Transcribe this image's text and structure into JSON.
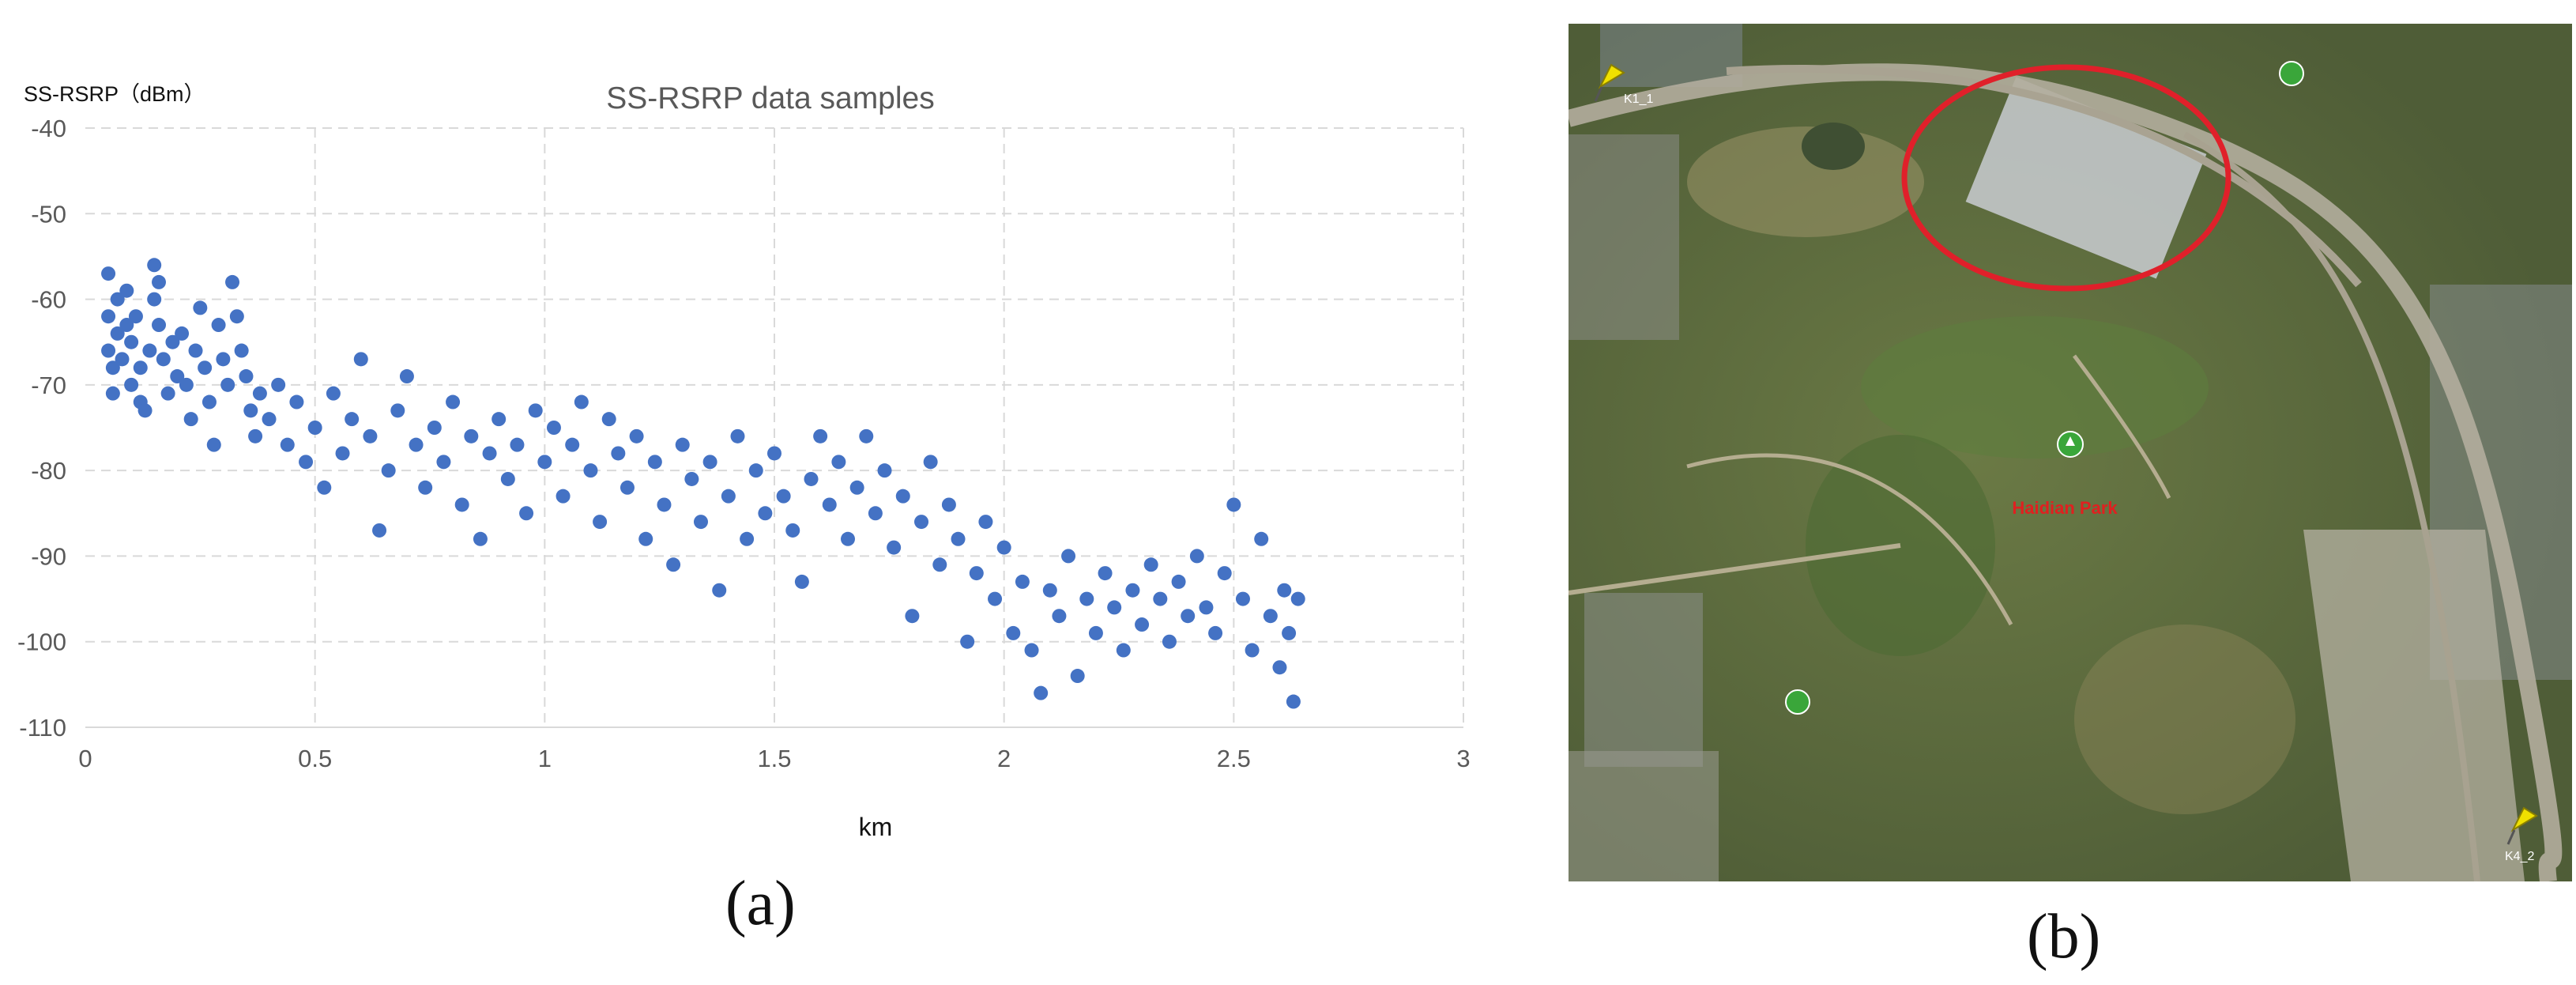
{
  "panels": {
    "a": {
      "label": "(a)"
    },
    "b": {
      "label": "(b)"
    }
  },
  "map": {
    "labels": {
      "park": "Haidian Park",
      "pin_top_left": "K1_1",
      "pin_bottom_right": "K4_2"
    },
    "colors": {
      "highlight_ellipse": "#e0202a",
      "pin": "#f0e000",
      "poi_marker": "#3aa63a"
    }
  },
  "chart_data": {
    "type": "scatter",
    "title": "SS-RSRP data samples",
    "ylabel": "SS-RSRP（dBm）",
    "xlabel": "km",
    "xlim": [
      0,
      3
    ],
    "ylim": [
      -110,
      -40
    ],
    "xticks": [
      "0",
      "0.5",
      "1",
      "1.5",
      "2",
      "2.5",
      "3"
    ],
    "yticks": [
      "-40",
      "-50",
      "-60",
      "-70",
      "-80",
      "-90",
      "-100",
      "-110"
    ],
    "grid": "dashed",
    "legend": "none",
    "marker_color": "#4472c4",
    "series": [
      {
        "points": [
          [
            0.05,
            -57
          ],
          [
            0.05,
            -62
          ],
          [
            0.05,
            -66
          ],
          [
            0.06,
            -68
          ],
          [
            0.06,
            -71
          ],
          [
            0.07,
            -60
          ],
          [
            0.07,
            -64
          ],
          [
            0.08,
            -67
          ],
          [
            0.09,
            -59
          ],
          [
            0.09,
            -63
          ],
          [
            0.1,
            -70
          ],
          [
            0.1,
            -65
          ],
          [
            0.11,
            -62
          ],
          [
            0.12,
            -68
          ],
          [
            0.12,
            -72
          ],
          [
            0.13,
            -73
          ],
          [
            0.14,
            -66
          ],
          [
            0.15,
            -56
          ],
          [
            0.15,
            -60
          ],
          [
            0.16,
            -58
          ],
          [
            0.16,
            -63
          ],
          [
            0.17,
            -67
          ],
          [
            0.18,
            -71
          ],
          [
            0.19,
            -65
          ],
          [
            0.2,
            -69
          ],
          [
            0.21,
            -64
          ],
          [
            0.22,
            -70
          ],
          [
            0.23,
            -74
          ],
          [
            0.24,
            -66
          ],
          [
            0.25,
            -61
          ],
          [
            0.26,
            -68
          ],
          [
            0.27,
            -72
          ],
          [
            0.28,
            -77
          ],
          [
            0.29,
            -63
          ],
          [
            0.3,
            -67
          ],
          [
            0.31,
            -70
          ],
          [
            0.32,
            -58
          ],
          [
            0.33,
            -62
          ],
          [
            0.34,
            -66
          ],
          [
            0.35,
            -69
          ],
          [
            0.36,
            -73
          ],
          [
            0.37,
            -76
          ],
          [
            0.38,
            -71
          ],
          [
            0.4,
            -74
          ],
          [
            0.42,
            -70
          ],
          [
            0.44,
            -77
          ],
          [
            0.46,
            -72
          ],
          [
            0.48,
            -79
          ],
          [
            0.5,
            -75
          ],
          [
            0.52,
            -82
          ],
          [
            0.54,
            -71
          ],
          [
            0.56,
            -78
          ],
          [
            0.58,
            -74
          ],
          [
            0.6,
            -67
          ],
          [
            0.62,
            -76
          ],
          [
            0.64,
            -87
          ],
          [
            0.66,
            -80
          ],
          [
            0.68,
            -73
          ],
          [
            0.7,
            -69
          ],
          [
            0.72,
            -77
          ],
          [
            0.74,
            -82
          ],
          [
            0.76,
            -75
          ],
          [
            0.78,
            -79
          ],
          [
            0.8,
            -72
          ],
          [
            0.82,
            -84
          ],
          [
            0.84,
            -76
          ],
          [
            0.86,
            -88
          ],
          [
            0.88,
            -78
          ],
          [
            0.9,
            -74
          ],
          [
            0.92,
            -81
          ],
          [
            0.94,
            -77
          ],
          [
            0.96,
            -85
          ],
          [
            0.98,
            -73
          ],
          [
            1.0,
            -79
          ],
          [
            1.02,
            -75
          ],
          [
            1.04,
            -83
          ],
          [
            1.06,
            -77
          ],
          [
            1.08,
            -72
          ],
          [
            1.1,
            -80
          ],
          [
            1.12,
            -86
          ],
          [
            1.14,
            -74
          ],
          [
            1.16,
            -78
          ],
          [
            1.18,
            -82
          ],
          [
            1.2,
            -76
          ],
          [
            1.22,
            -88
          ],
          [
            1.24,
            -79
          ],
          [
            1.26,
            -84
          ],
          [
            1.28,
            -91
          ],
          [
            1.3,
            -77
          ],
          [
            1.32,
            -81
          ],
          [
            1.34,
            -86
          ],
          [
            1.36,
            -79
          ],
          [
            1.38,
            -94
          ],
          [
            1.4,
            -83
          ],
          [
            1.42,
            -76
          ],
          [
            1.44,
            -88
          ],
          [
            1.46,
            -80
          ],
          [
            1.48,
            -85
          ],
          [
            1.5,
            -78
          ],
          [
            1.52,
            -83
          ],
          [
            1.54,
            -87
          ],
          [
            1.56,
            -93
          ],
          [
            1.58,
            -81
          ],
          [
            1.6,
            -76
          ],
          [
            1.62,
            -84
          ],
          [
            1.64,
            -79
          ],
          [
            1.66,
            -88
          ],
          [
            1.68,
            -82
          ],
          [
            1.7,
            -76
          ],
          [
            1.72,
            -85
          ],
          [
            1.74,
            -80
          ],
          [
            1.76,
            -89
          ],
          [
            1.78,
            -83
          ],
          [
            1.8,
            -97
          ],
          [
            1.82,
            -86
          ],
          [
            1.84,
            -79
          ],
          [
            1.86,
            -91
          ],
          [
            1.88,
            -84
          ],
          [
            1.9,
            -88
          ],
          [
            1.92,
            -100
          ],
          [
            1.94,
            -92
          ],
          [
            1.96,
            -86
          ],
          [
            1.98,
            -95
          ],
          [
            2.0,
            -89
          ],
          [
            2.02,
            -99
          ],
          [
            2.04,
            -93
          ],
          [
            2.06,
            -101
          ],
          [
            2.08,
            -106
          ],
          [
            2.1,
            -94
          ],
          [
            2.12,
            -97
          ],
          [
            2.14,
            -90
          ],
          [
            2.16,
            -104
          ],
          [
            2.18,
            -95
          ],
          [
            2.2,
            -99
          ],
          [
            2.22,
            -92
          ],
          [
            2.24,
            -96
          ],
          [
            2.26,
            -101
          ],
          [
            2.28,
            -94
          ],
          [
            2.3,
            -98
          ],
          [
            2.32,
            -91
          ],
          [
            2.34,
            -95
          ],
          [
            2.36,
            -100
          ],
          [
            2.38,
            -93
          ],
          [
            2.4,
            -97
          ],
          [
            2.42,
            -90
          ],
          [
            2.44,
            -96
          ],
          [
            2.46,
            -99
          ],
          [
            2.48,
            -92
          ],
          [
            2.5,
            -84
          ],
          [
            2.52,
            -95
          ],
          [
            2.54,
            -101
          ],
          [
            2.56,
            -88
          ],
          [
            2.58,
            -97
          ],
          [
            2.6,
            -103
          ],
          [
            2.61,
            -94
          ],
          [
            2.62,
            -99
          ],
          [
            2.63,
            -107
          ],
          [
            2.64,
            -95
          ]
        ]
      }
    ]
  }
}
